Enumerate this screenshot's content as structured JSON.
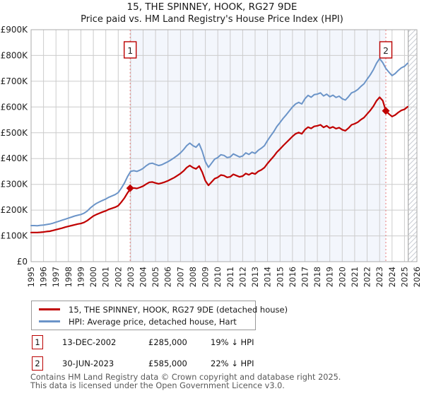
{
  "chart_data": {
    "type": "line",
    "title": "15, THE SPINNEY, HOOK, RG27 9DE",
    "subtitle": "Price paid vs. HM Land Registry's House Price Index (HPI)",
    "x_axis": {
      "start_year": 1995,
      "end_year": 2026,
      "tick_labels": [
        "1995",
        "1996",
        "1997",
        "1998",
        "1999",
        "2000",
        "2001",
        "2002",
        "2003",
        "2004",
        "2005",
        "2006",
        "2007",
        "2008",
        "2009",
        "2010",
        "2011",
        "2012",
        "2013",
        "2014",
        "2015",
        "2016",
        "2017",
        "2018",
        "2019",
        "2020",
        "2021",
        "2022",
        "2023",
        "2024",
        "2025",
        "2026"
      ]
    },
    "y_axis": {
      "min": 0,
      "max": 900000,
      "tick_values_k": [
        0,
        100,
        200,
        300,
        400,
        500,
        600,
        700,
        800,
        900
      ],
      "tick_labels": [
        "£0",
        "£100K",
        "£200K",
        "£300K",
        "£400K",
        "£500K",
        "£600K",
        "£700K",
        "£800K",
        "£900K"
      ]
    },
    "grid": true,
    "legend_position": "bottom",
    "series": [
      {
        "name": "15, THE SPINNEY, HOOK, RG27 9DE (detached house)",
        "color": "#c00000",
        "x_start": 1995.0,
        "x_step_years": 0.25,
        "values_gbp_k": [
          113,
          113,
          113,
          114,
          115,
          117,
          118,
          121,
          124,
          127,
          130,
          134,
          137,
          140,
          143,
          146,
          148,
          152,
          159,
          168,
          177,
          183,
          188,
          193,
          197,
          203,
          207,
          211,
          217,
          231,
          247,
          267,
          284,
          286,
          284,
          288,
          293,
          301,
          308,
          309,
          305,
          302,
          305,
          309,
          314,
          320,
          326,
          334,
          342,
          352,
          365,
          373,
          365,
          360,
          371,
          347,
          314,
          296,
          309,
          322,
          327,
          336,
          334,
          327,
          329,
          339,
          334,
          329,
          332,
          342,
          337,
          344,
          340,
          350,
          356,
          365,
          381,
          395,
          409,
          425,
          437,
          450,
          462,
          474,
          486,
          496,
          501,
          496,
          512,
          522,
          517,
          525,
          527,
          531,
          521,
          527,
          518,
          523,
          516,
          520,
          512,
          508,
          518,
          531,
          535,
          541,
          551,
          559,
          573,
          587,
          603,
          624,
          638,
          625,
          585,
          573,
          563,
          569,
          579,
          587,
          591,
          601
        ]
      },
      {
        "name": "HPI: Average price, detached house, Hart",
        "color": "#6b94c8",
        "x_start": 1995.0,
        "x_step_years": 0.25,
        "values_gbp_k": [
          140,
          140,
          139,
          141,
          142,
          144,
          146,
          149,
          153,
          157,
          161,
          165,
          169,
          173,
          177,
          180,
          183,
          188,
          196,
          208,
          218,
          226,
          232,
          238,
          243,
          250,
          255,
          260,
          268,
          285,
          305,
          330,
          350,
          353,
          350,
          355,
          362,
          372,
          380,
          382,
          377,
          373,
          376,
          382,
          388,
          395,
          403,
          412,
          422,
          435,
          450,
          460,
          450,
          444,
          458,
          428,
          388,
          366,
          382,
          398,
          404,
          415,
          412,
          404,
          406,
          418,
          412,
          406,
          410,
          422,
          416,
          425,
          420,
          432,
          440,
          450,
          470,
          488,
          505,
          525,
          540,
          556,
          570,
          585,
          600,
          612,
          618,
          612,
          632,
          645,
          638,
          648,
          650,
          655,
          643,
          650,
          640,
          646,
          637,
          642,
          632,
          627,
          640,
          655,
          660,
          668,
          680,
          690,
          708,
          725,
          745,
          770,
          788,
          772,
          750,
          735,
          722,
          730,
          742,
          752,
          758,
          770
        ]
      }
    ],
    "sales": [
      {
        "label": "1",
        "date": "13-DEC-2002",
        "year": 2002.96,
        "price_gbp": 285000,
        "price_gbp_k": 285
      },
      {
        "label": "2",
        "date": "30-JUN-2023",
        "year": 2023.5,
        "price_gbp": 585000,
        "price_gbp_k": 585
      }
    ],
    "shaded_region_years": [
      2002.96,
      2023.5
    ],
    "hatch_region_years": [
      2025.3,
      2026
    ]
  },
  "legend": {
    "entries": [
      {
        "label": "15, THE SPINNEY, HOOK, RG27 9DE (detached house)",
        "color": "#c00000"
      },
      {
        "label": "HPI: Average price, detached house, Hart",
        "color": "#6b94c8"
      }
    ]
  },
  "annotations": [
    {
      "marker": "1",
      "date": "13-DEC-2002",
      "price": "£285,000",
      "hpi_diff": "19% ↓ HPI"
    },
    {
      "marker": "2",
      "date": "30-JUN-2023",
      "price": "£585,000",
      "hpi_diff": "22% ↓ HPI"
    }
  ],
  "footer": {
    "line1": "Contains HM Land Registry data © Crown copyright and database right 2025.",
    "line2": "This data is licensed under the Open Government Licence v3.0."
  },
  "colors": {
    "property_line": "#c00000",
    "hpi_line": "#6b94c8",
    "sale_dashed": "#e87b7b",
    "shaded_band": "#f3f6fc",
    "grid": "#cccccc",
    "plot_border": "#ababab",
    "hatch": "#c9ccd3",
    "marker_box_border": "#bb0000"
  }
}
